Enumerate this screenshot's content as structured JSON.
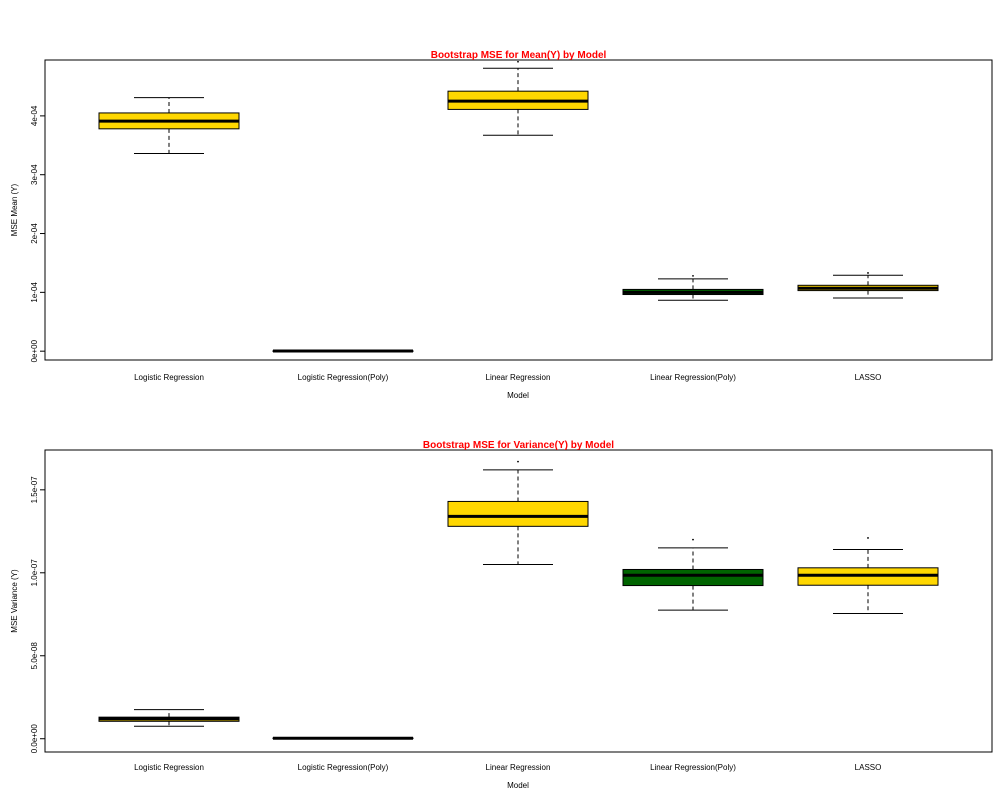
{
  "chart_data": [
    {
      "type": "boxplot",
      "title": "Bootstrap MSE for Mean(Y) by Model",
      "xlabel": "Model",
      "ylabel": "MSE Mean (Y)",
      "ylim": [
        -1.5e-05,
        0.000495
      ],
      "yticks": [
        {
          "value": 0,
          "label": "0e+00"
        },
        {
          "value": 0.0001,
          "label": "1e-04"
        },
        {
          "value": 0.0002,
          "label": "2e-04"
        },
        {
          "value": 0.0003,
          "label": "3e-04"
        },
        {
          "value": 0.0004,
          "label": "4e-04"
        }
      ],
      "categories": [
        "Logistic Regression",
        "Logistic Regression(Poly)",
        "Linear Regression",
        "Linear Regression(Poly)",
        "LASSO"
      ],
      "boxes": [
        {
          "min": 0.000336,
          "q1": 0.000378,
          "median": 0.000391,
          "q3": 0.000405,
          "max": 0.000431,
          "color": "#FFD700",
          "outliers": []
        },
        {
          "min": 3e-07,
          "q1": 3e-07,
          "median": 4e-07,
          "q3": 5e-07,
          "max": 6e-07,
          "color": "#FFD700",
          "outliers": []
        },
        {
          "min": 0.000367,
          "q1": 0.000411,
          "median": 0.000425,
          "q3": 0.000442,
          "max": 0.000481,
          "color": "#FFD700",
          "outliers": [
            0.000492
          ]
        },
        {
          "min": 8.65e-05,
          "q1": 9.63e-05,
          "median": 0.0001,
          "q3": 0.000105,
          "max": 0.000123,
          "color": "#006400",
          "outliers": [
            0.000128
          ]
        },
        {
          "min": 9.05e-05,
          "q1": 0.000103,
          "median": 0.000107,
          "q3": 0.000112,
          "max": 0.000129,
          "color": "#FFD700",
          "outliers": [
            0.000133
          ]
        }
      ]
    },
    {
      "type": "boxplot",
      "title": "Bootstrap MSE for Variance(Y) by Model",
      "xlabel": "Model",
      "ylabel": "MSE Variance (Y)",
      "ylim": [
        -8e-09,
        1.74e-07
      ],
      "yticks": [
        {
          "value": 0,
          "label": "0.0e+00"
        },
        {
          "value": 5e-08,
          "label": "5.0e-08"
        },
        {
          "value": 1e-07,
          "label": "1.0e-07"
        },
        {
          "value": 1.5e-07,
          "label": "1.5e-07"
        }
      ],
      "categories": [
        "Logistic Regression",
        "Logistic Regression(Poly)",
        "Linear Regression",
        "Linear Regression(Poly)",
        "LASSO"
      ],
      "boxes": [
        {
          "min": 7.5e-09,
          "q1": 1.05e-08,
          "median": 1.2e-08,
          "q3": 1.3e-08,
          "max": 1.75e-08,
          "color": "#FFD700",
          "outliers": []
        },
        {
          "min": 1e-10,
          "q1": 2e-10,
          "median": 3e-10,
          "q3": 4e-10,
          "max": 5e-10,
          "color": "#FFD700",
          "outliers": []
        },
        {
          "min": 1.05e-07,
          "q1": 1.28e-07,
          "median": 1.34e-07,
          "q3": 1.43e-07,
          "max": 1.62e-07,
          "color": "#FFD700",
          "outliers": [
            1.67e-07
          ]
        },
        {
          "min": 7.75e-08,
          "q1": 9.23e-08,
          "median": 9.85e-08,
          "q3": 1.02e-07,
          "max": 1.15e-07,
          "color": "#006400",
          "outliers": [
            1.2e-07
          ]
        },
        {
          "min": 7.55e-08,
          "q1": 9.25e-08,
          "median": 9.85e-08,
          "q3": 1.03e-07,
          "max": 1.14e-07,
          "color": "#FFD700",
          "outliers": [
            1.21e-07
          ]
        }
      ]
    }
  ],
  "colors": {
    "title": "#FF0000",
    "axis": "#000000",
    "box_gold": "#FFD700",
    "box_green": "#006400"
  }
}
